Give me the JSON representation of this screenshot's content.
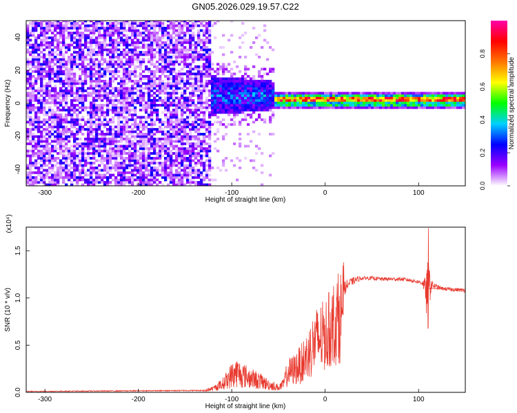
{
  "title": "GN05.2026.029.19.57.C22",
  "chart_data": [
    {
      "type": "heatmap",
      "xlabel": "Height of straight line (km)",
      "ylabel": "Frequency (Hz)",
      "xlim": [
        -320,
        150
      ],
      "ylim": [
        -50,
        50
      ],
      "x_ticks": [
        -300,
        -200,
        -100,
        0,
        100
      ],
      "y_ticks": [
        -40,
        -20,
        0,
        20,
        40
      ],
      "grid": false,
      "colorbar": {
        "label": "Normalized spectral amplitude",
        "range": [
          0,
          1
        ],
        "ticks": [
          "0.0",
          "0.2",
          "0.4",
          "0.6",
          "0.8"
        ],
        "colors": [
          "#ffffff",
          "#9a00ff",
          "#0000ff",
          "#00d0ff",
          "#00ff00",
          "#ffff00",
          "#ff7700",
          "#ff0000",
          "#ff00aa"
        ]
      },
      "regions": [
        {
          "x": [
            -320,
            -125
          ],
          "freq": [
            -50,
            50
          ],
          "amplitude": "low, broadband noise (0.05-0.25)"
        },
        {
          "x": [
            -125,
            -55
          ],
          "freq": [
            -10,
            18
          ],
          "amplitude": "0.2-0.45"
        },
        {
          "x": [
            -55,
            150
          ],
          "freq_center": 1,
          "amplitude": "narrow line 0.5-1.0"
        }
      ]
    },
    {
      "type": "line",
      "xlabel": "Height of straight line (km)",
      "ylabel": "SNR (10 * v/v)",
      "y_multiplier": "(x10⁴)",
      "xlim": [
        -320,
        150
      ],
      "ylim": [
        0,
        1.75
      ],
      "x_ticks": [
        -300,
        -200,
        -100,
        0,
        100
      ],
      "y_ticks": [
        "0.0",
        "0.5",
        "1.0",
        "1.5"
      ],
      "grid": false,
      "series_color": "#e83a2f",
      "envelope": {
        "x": [
          -320,
          -130,
          -120,
          -110,
          -100,
          -95,
          -90,
          -80,
          -70,
          -60,
          -50,
          -45,
          -40,
          -35,
          -30,
          -25,
          -20,
          -15,
          -10,
          -5,
          0,
          5,
          10,
          15,
          20,
          25,
          30,
          35,
          40,
          50,
          60,
          70,
          80,
          90,
          95,
          100,
          104,
          107,
          109,
          110,
          112,
          114,
          118,
          125,
          135,
          150
        ],
        "y": [
          0.01,
          0.02,
          0.04,
          0.08,
          0.14,
          0.16,
          0.15,
          0.13,
          0.1,
          0.07,
          0.05,
          0.07,
          0.2,
          0.22,
          0.25,
          0.3,
          0.4,
          0.5,
          0.6,
          0.68,
          0.72,
          0.82,
          0.92,
          1.0,
          1.1,
          1.15,
          1.18,
          1.2,
          1.21,
          1.21,
          1.2,
          1.2,
          1.2,
          1.19,
          1.18,
          1.17,
          1.16,
          1.12,
          1.0,
          1.0,
          1.14,
          1.14,
          1.12,
          1.1,
          1.09,
          1.08
        ],
        "noise": [
          0.004,
          0.006,
          0.02,
          0.06,
          0.17,
          0.2,
          0.17,
          0.12,
          0.1,
          0.06,
          0.03,
          0.06,
          0.14,
          0.14,
          0.17,
          0.18,
          0.17,
          0.2,
          0.2,
          0.15,
          0.14,
          0.12,
          0.12,
          0.1,
          0.08,
          0.05,
          0.04,
          0.03,
          0.02,
          0.02,
          0.02,
          0.02,
          0.02,
          0.02,
          0.02,
          0.02,
          0.03,
          0.1,
          0.3,
          0.45,
          0.2,
          0.05,
          0.03,
          0.02,
          0.02,
          0.02
        ]
      },
      "peaks": [
        {
          "x": 110.5,
          "y": 1.74
        },
        {
          "x": 110,
          "y": 0.76
        }
      ]
    }
  ]
}
